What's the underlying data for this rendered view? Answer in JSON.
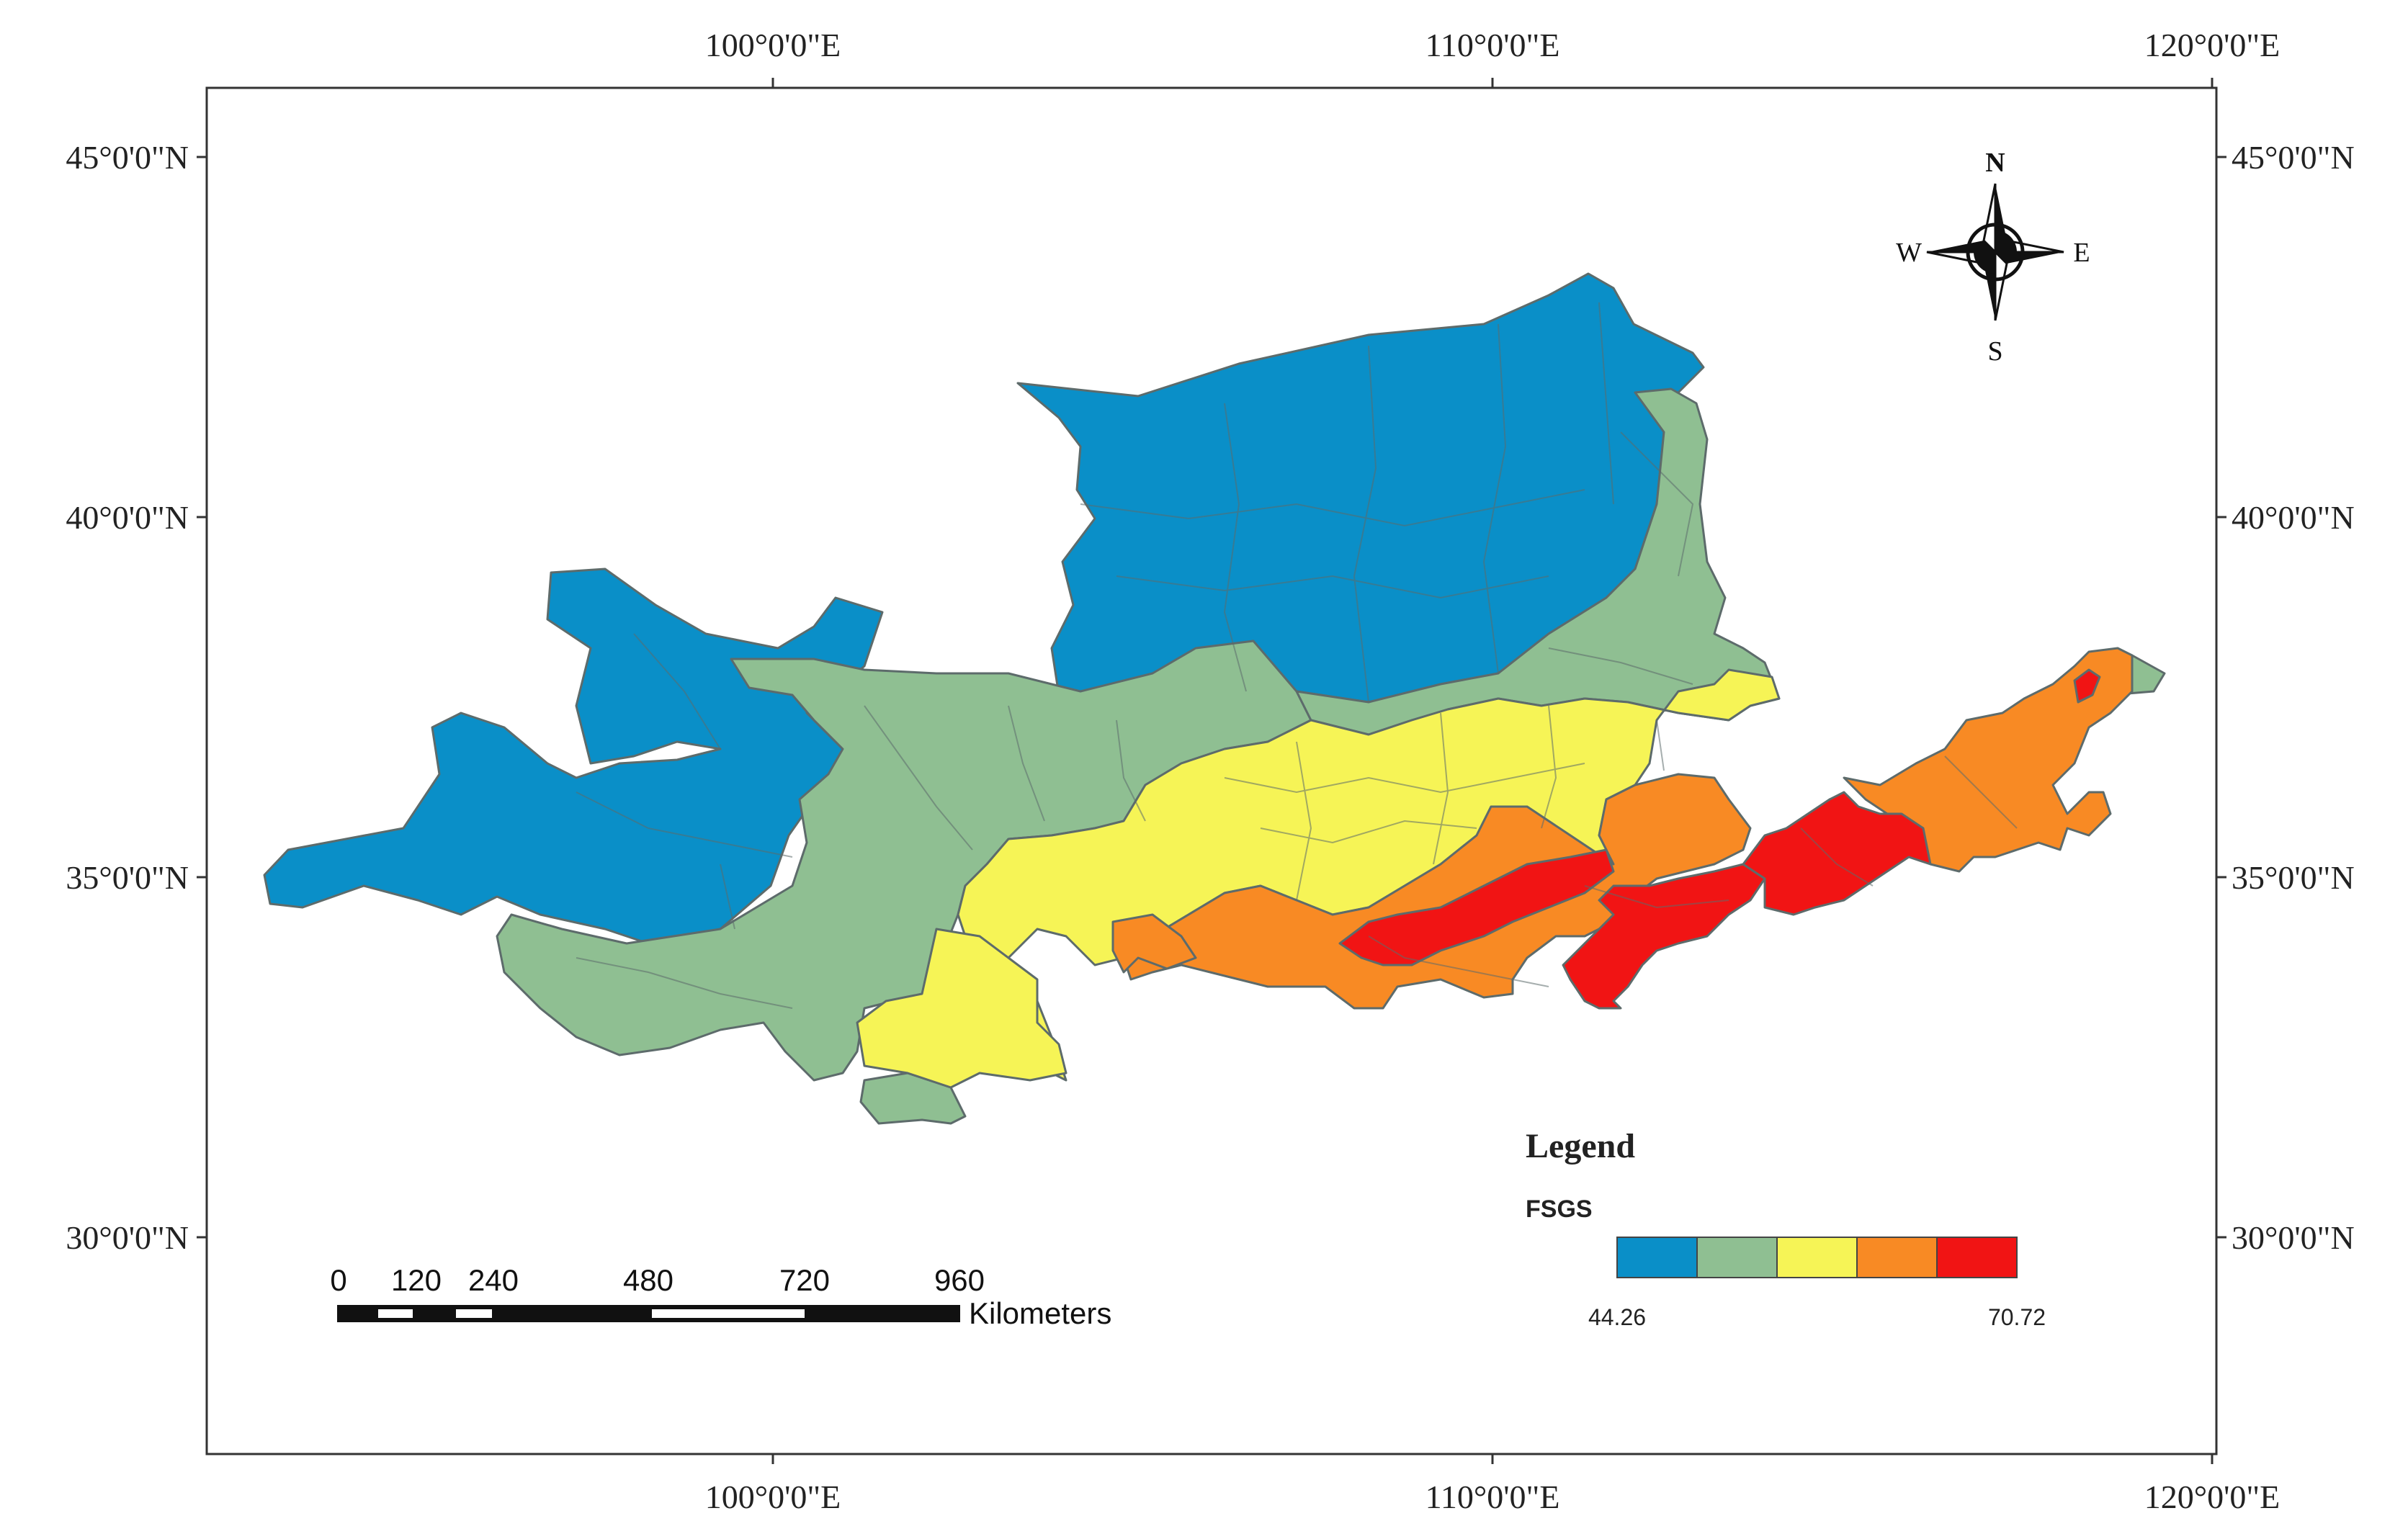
{
  "graticule": {
    "top_labels": [
      "100°0'0\"E",
      "110°0'0\"E",
      "120°0'0\"E"
    ],
    "bottom_labels": [
      "100°0'0\"E",
      "110°0'0\"E",
      "120°0'0\"E"
    ],
    "left_labels": [
      "45°0'0\"N",
      "40°0'0\"N",
      "35°0'0\"N",
      "30°0'0\"N"
    ],
    "right_labels": [
      "45°0'0\"N",
      "40°0'0\"N",
      "35°0'0\"N",
      "30°0'0\"N"
    ]
  },
  "north_arrow": {
    "n": "N",
    "s": "S",
    "e": "E",
    "w": "W"
  },
  "legend": {
    "title": "Legend",
    "field": "FSGS",
    "min_label": "44.26",
    "max_label": "70.72",
    "classes": [
      "#0a8fc8",
      "#8fbf92",
      "#f6f456",
      "#f88a24",
      "#f11414"
    ]
  },
  "scale_bar": {
    "ticks": [
      "0",
      "120",
      "240",
      "480",
      "720",
      "960"
    ],
    "unit": "Kilometers"
  }
}
